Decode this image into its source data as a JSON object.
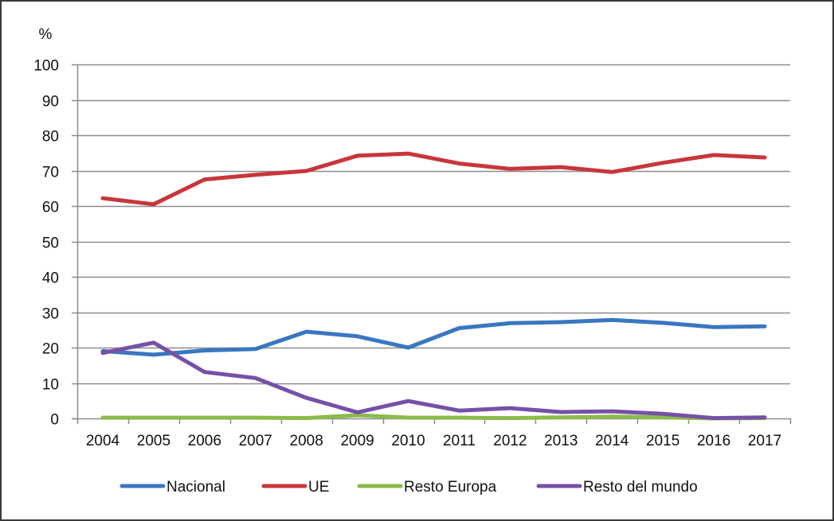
{
  "chart_data": {
    "type": "line",
    "title": "",
    "xlabel": "",
    "ylabel": "%",
    "ylim": [
      0,
      100
    ],
    "yticks": [
      0,
      10,
      20,
      30,
      40,
      50,
      60,
      70,
      80,
      90,
      100
    ],
    "grid": true,
    "legend_position": "bottom",
    "categories": [
      "2004",
      "2005",
      "2006",
      "2007",
      "2008",
      "2009",
      "2010",
      "2011",
      "2012",
      "2013",
      "2014",
      "2015",
      "2016",
      "2017"
    ],
    "series": [
      {
        "name": "Nacional",
        "color": "#3a76c2",
        "values": [
          19.0,
          18.0,
          19.2,
          19.6,
          24.5,
          23.2,
          20.0,
          25.5,
          26.9,
          27.2,
          27.8,
          27.0,
          25.8,
          26.0
        ]
      },
      {
        "name": "UE",
        "color": "#c8363a",
        "values": [
          62.2,
          60.5,
          67.5,
          68.8,
          69.9,
          74.2,
          74.8,
          72.0,
          70.5,
          71.0,
          69.6,
          72.2,
          74.4,
          73.7
        ]
      },
      {
        "name": "Resto Europa",
        "color": "#8bbb4a",
        "values": [
          0.2,
          0.2,
          0.2,
          0.2,
          0.1,
          0.9,
          0.2,
          0.2,
          0.1,
          0.3,
          0.5,
          0.3,
          0.0,
          0.1
        ]
      },
      {
        "name": "Resto del mundo",
        "color": "#7650a8",
        "values": [
          18.5,
          21.4,
          13.1,
          11.4,
          5.8,
          1.7,
          4.9,
          2.2,
          2.9,
          1.8,
          2.0,
          1.3,
          0.1,
          0.3
        ]
      }
    ]
  }
}
